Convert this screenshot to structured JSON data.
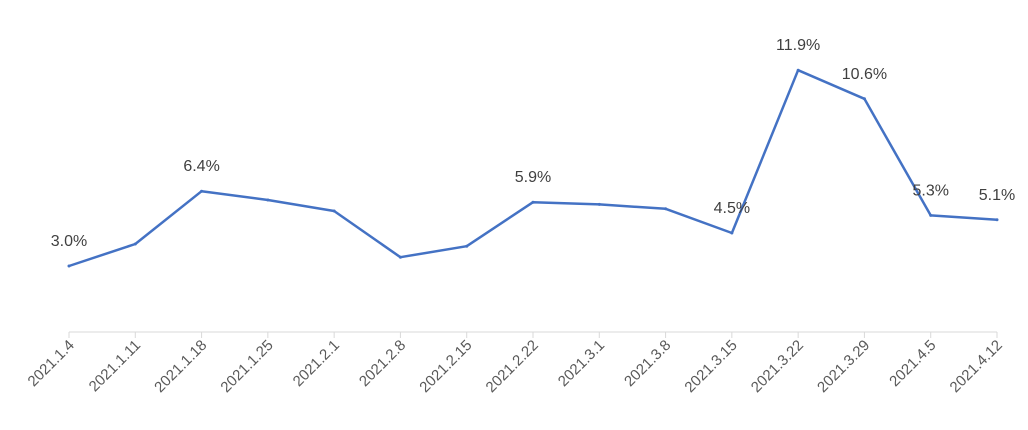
{
  "chart_data": {
    "type": "line",
    "title": "",
    "xlabel": "",
    "ylabel": "",
    "ylim": [
      0,
      13.2
    ],
    "grid": false,
    "legend": "none",
    "categories": [
      "2021.1.4",
      "2021.1.11",
      "2021.1.18",
      "2021.1.25",
      "2021.2.1",
      "2021.2.8",
      "2021.2.15",
      "2021.2.22",
      "2021.3.1",
      "2021.3.8",
      "2021.3.15",
      "2021.3.22",
      "2021.3.29",
      "2021.4.5",
      "2021.4.12"
    ],
    "series": [
      {
        "color": "#4472c4",
        "values": [
          3.0,
          4.0,
          6.4,
          6.0,
          5.5,
          3.4,
          3.9,
          5.9,
          5.8,
          5.6,
          4.5,
          11.9,
          10.6,
          5.3,
          5.1
        ]
      }
    ],
    "data_labels": [
      {
        "index": 0,
        "text": "3.0%"
      },
      {
        "index": 2,
        "text": "6.4%"
      },
      {
        "index": 7,
        "text": "5.9%"
      },
      {
        "index": 10,
        "text": "4.5%"
      },
      {
        "index": 11,
        "text": "11.9%"
      },
      {
        "index": 12,
        "text": "10.6%"
      },
      {
        "index": 13,
        "text": "5.3%"
      },
      {
        "index": 14,
        "text": "5.1%"
      }
    ]
  }
}
